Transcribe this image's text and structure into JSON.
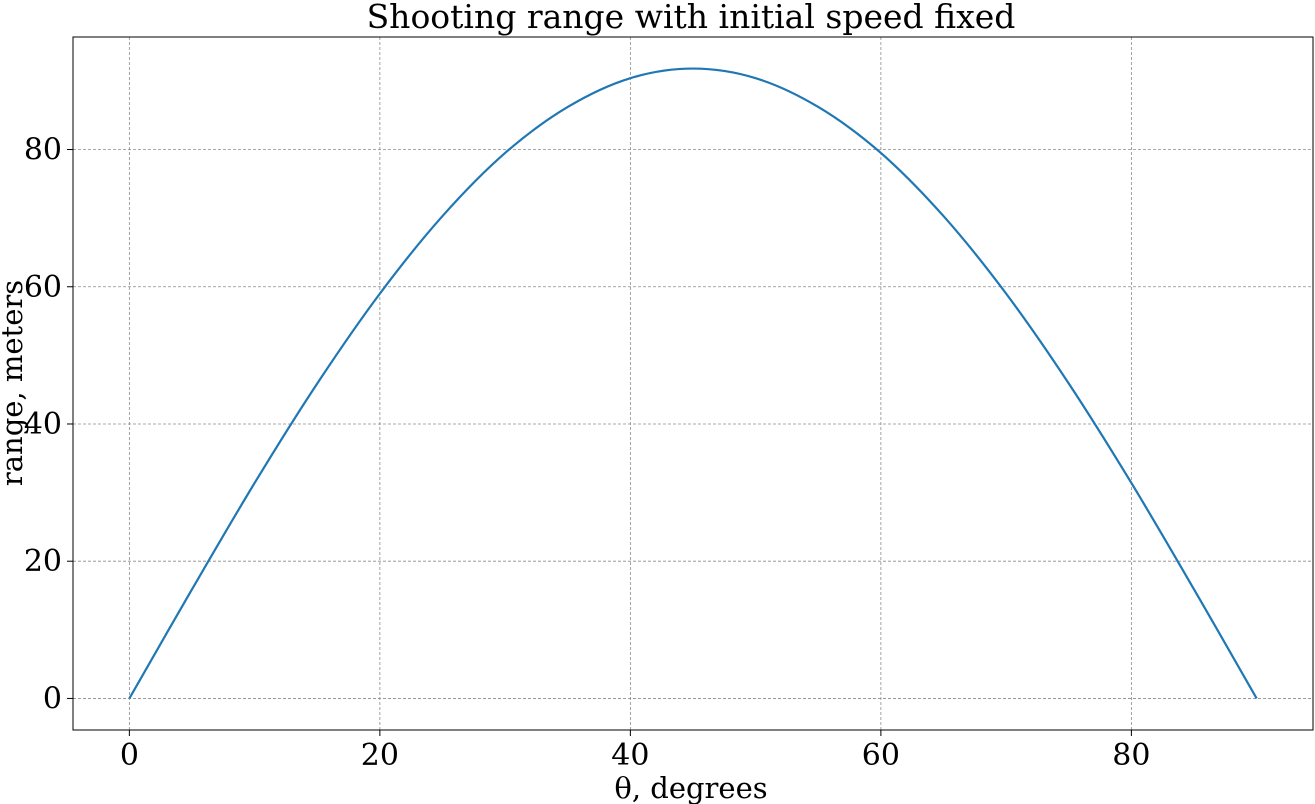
{
  "chart_data": {
    "type": "line",
    "title": "Shooting range with initial speed fixed",
    "xlabel": "θ, degrees",
    "ylabel": "range, meters",
    "xlim": [
      -4.5,
      94.5
    ],
    "ylim": [
      -4.6,
      96.4
    ],
    "xticks": [
      0,
      20,
      40,
      60,
      80
    ],
    "yticks": [
      0,
      20,
      40,
      60,
      80
    ],
    "grid": true,
    "legend": "none",
    "colors": {
      "line": "#1f77b4",
      "grid": "#8c8c8c",
      "axes": "#000000"
    },
    "series": [
      {
        "x": [
          0,
          5,
          10,
          15,
          20,
          25,
          30,
          35,
          40,
          45,
          50,
          55,
          60,
          65,
          70,
          75,
          80,
          85,
          90
        ],
        "values": [
          0,
          15.9,
          31.4,
          45.9,
          59.0,
          70.3,
          79.5,
          86.2,
          90.4,
          91.8,
          90.4,
          86.2,
          79.5,
          70.3,
          59.0,
          45.9,
          31.4,
          15.9,
          0
        ]
      }
    ]
  }
}
